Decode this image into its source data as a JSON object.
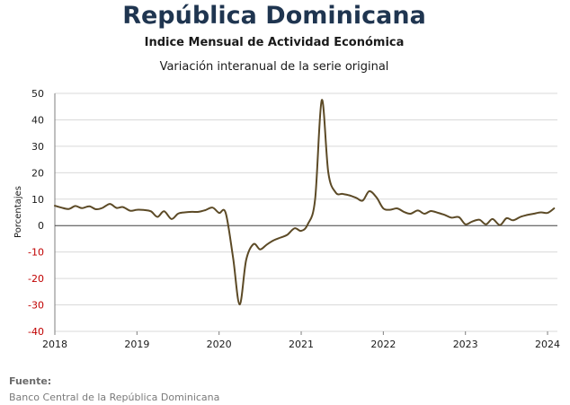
{
  "header": {
    "title": "República Dominicana",
    "subtitle": "Indice Mensual de  Actividad Económica",
    "subtitle2": "Variación interanual de la serie original"
  },
  "source": {
    "label": "Fuente:",
    "text": "Banco Central de la República Dominicana"
  },
  "colors": {
    "line": "#5c4a26",
    "negative_tick": "#c00000",
    "grid": "#d9d9d9",
    "title": "#1f3550"
  },
  "chart_data": {
    "type": "line",
    "title": "Variación interanual de la serie original",
    "xlabel": "",
    "ylabel": "Porcentajes",
    "ylim": [
      -40,
      50
    ],
    "xlim": [
      2018.0,
      2024.12
    ],
    "yticks": [
      -40,
      -30,
      -20,
      -10,
      0,
      10,
      20,
      30,
      40,
      50
    ],
    "xticks": [
      "2018",
      "2019",
      "2020",
      "2021",
      "2022",
      "2023",
      "2024"
    ],
    "grid": true,
    "legend": "none",
    "series": [
      {
        "name": "",
        "x": [
          2018.0,
          2018.08,
          2018.17,
          2018.25,
          2018.33,
          2018.42,
          2018.5,
          2018.58,
          2018.67,
          2018.75,
          2018.83,
          2018.92,
          2019.0,
          2019.08,
          2019.17,
          2019.25,
          2019.33,
          2019.42,
          2019.5,
          2019.58,
          2019.67,
          2019.75,
          2019.83,
          2019.92,
          2020.0,
          2020.08,
          2020.17,
          2020.25,
          2020.33,
          2020.42,
          2020.5,
          2020.58,
          2020.67,
          2020.75,
          2020.83,
          2020.92,
          2021.0,
          2021.08,
          2021.17,
          2021.25,
          2021.33,
          2021.42,
          2021.5,
          2021.58,
          2021.67,
          2021.75,
          2021.83,
          2021.92,
          2022.0,
          2022.08,
          2022.17,
          2022.25,
          2022.33,
          2022.42,
          2022.5,
          2022.58,
          2022.67,
          2022.75,
          2022.83,
          2022.92,
          2023.0,
          2023.08,
          2023.17,
          2023.25,
          2023.33,
          2023.42,
          2023.5,
          2023.58,
          2023.67,
          2023.75,
          2023.83,
          2023.92,
          2024.0,
          2024.08
        ],
        "values": [
          7.5,
          6.8,
          6.3,
          7.4,
          6.6,
          7.3,
          6.2,
          6.7,
          8.2,
          6.7,
          7.0,
          5.6,
          6.0,
          5.9,
          5.4,
          3.3,
          5.4,
          2.5,
          4.5,
          5.0,
          5.2,
          5.2,
          5.8,
          6.8,
          4.8,
          4.8,
          -12.0,
          -29.8,
          -13.0,
          -7.0,
          -9.0,
          -7.2,
          -5.5,
          -4.5,
          -3.5,
          -1.0,
          -2.0,
          0.5,
          10.0,
          47.5,
          20.0,
          12.5,
          12.0,
          11.5,
          10.5,
          9.5,
          13.0,
          10.5,
          6.5,
          6.0,
          6.5,
          5.2,
          4.5,
          5.7,
          4.5,
          5.5,
          4.8,
          4.0,
          3.0,
          3.2,
          0.5,
          1.5,
          2.2,
          0.5,
          2.5,
          0.2,
          2.8,
          2.0,
          3.3,
          4.0,
          4.5,
          5.0,
          4.8,
          6.5
        ]
      }
    ]
  }
}
